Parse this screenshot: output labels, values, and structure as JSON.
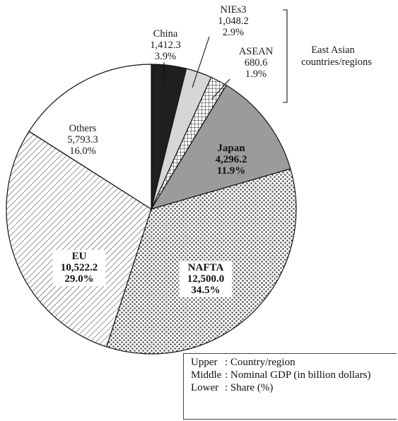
{
  "chart_data": {
    "type": "pie",
    "title": "",
    "unit": "billion dollars",
    "slices": [
      {
        "name": "China",
        "value": 1412.3,
        "value_text": "1,412.3",
        "share": 3.9,
        "share_text": "3.9%",
        "fill": "#1f1f1f",
        "pattern": "solid-black"
      },
      {
        "name": "NIEs3",
        "value": 1048.2,
        "value_text": "1,048.2",
        "share": 2.9,
        "share_text": "2.9%",
        "fill": "#d6d6d6",
        "pattern": "solid-light-gray"
      },
      {
        "name": "ASEAN",
        "value": 680.6,
        "value_text": "680.6",
        "share": 1.9,
        "share_text": "1.9%",
        "fill": "#ffffff",
        "pattern": "crosshatch"
      },
      {
        "name": "Japan",
        "value": 4296.2,
        "value_text": "4,296.2",
        "share": 11.9,
        "share_text": "11.9%",
        "fill": "#9b9b9b",
        "pattern": "solid-gray"
      },
      {
        "name": "NAFTA",
        "value": 12500.0,
        "value_text": "12,500.0",
        "share": 34.5,
        "share_text": "34.5%",
        "fill": "#ffffff",
        "pattern": "dots"
      },
      {
        "name": "EU",
        "value": 10522.2,
        "value_text": "10,522.2",
        "share": 29.0,
        "share_text": "29.0%",
        "fill": "#ffffff",
        "pattern": "diagonal-lines"
      },
      {
        "name": "Others",
        "value": 5793.3,
        "value_text": "5,793.3",
        "share": 16.0,
        "share_text": "16.0%",
        "fill": "#ffffff",
        "pattern": "none"
      }
    ],
    "group_annotation": {
      "text_line1": "East Asian",
      "text_line2": "countries/regions",
      "members": [
        "China",
        "NIEs3",
        "ASEAN"
      ]
    },
    "legend": {
      "rows": [
        {
          "key": "Upper",
          "text": "Country/region"
        },
        {
          "key": "Middle",
          "text": "Nominal GDP (in billion dollars)"
        },
        {
          "key": "Lower",
          "text": "Share (%)"
        }
      ]
    }
  }
}
